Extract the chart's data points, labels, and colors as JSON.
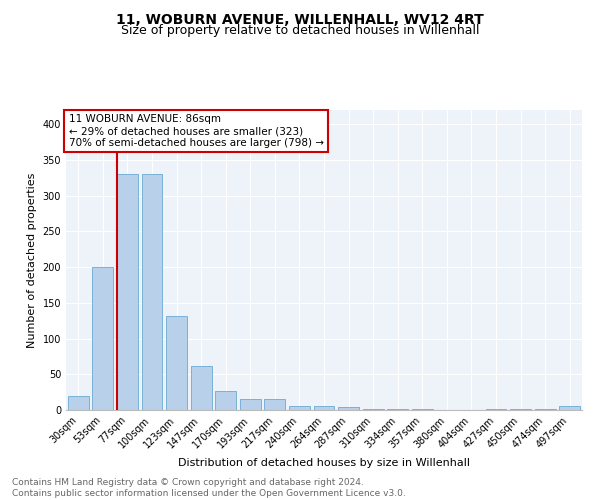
{
  "title": "11, WOBURN AVENUE, WILLENHALL, WV12 4RT",
  "subtitle": "Size of property relative to detached houses in Willenhall",
  "xlabel": "Distribution of detached houses by size in Willenhall",
  "ylabel": "Number of detached properties",
  "categories": [
    "30sqm",
    "53sqm",
    "77sqm",
    "100sqm",
    "123sqm",
    "147sqm",
    "170sqm",
    "193sqm",
    "217sqm",
    "240sqm",
    "264sqm",
    "287sqm",
    "310sqm",
    "334sqm",
    "357sqm",
    "380sqm",
    "404sqm",
    "427sqm",
    "450sqm",
    "474sqm",
    "497sqm"
  ],
  "values": [
    19,
    200,
    330,
    331,
    132,
    62,
    27,
    16,
    15,
    6,
    5,
    4,
    1,
    1,
    1,
    0,
    0,
    2,
    1,
    1,
    5
  ],
  "bar_color": "#b8d0ea",
  "bar_edge_color": "#6aaad4",
  "vline_bin_index": 2,
  "vline_color": "#cc0000",
  "annotation_text": "11 WOBURN AVENUE: 86sqm\n← 29% of detached houses are smaller (323)\n70% of semi-detached houses are larger (798) →",
  "annotation_box_color": "#ffffff",
  "annotation_box_edge": "#cc0000",
  "footnote": "Contains HM Land Registry data © Crown copyright and database right 2024.\nContains public sector information licensed under the Open Government Licence v3.0.",
  "ylim": [
    0,
    420
  ],
  "yticks": [
    0,
    50,
    100,
    150,
    200,
    250,
    300,
    350,
    400
  ],
  "background_color": "#eef2f9",
  "title_fontsize": 10,
  "subtitle_fontsize": 9,
  "ylabel_fontsize": 8,
  "xlabel_fontsize": 8,
  "tick_fontsize": 7,
  "footnote_fontsize": 6.5,
  "footnote_color": "#666666",
  "annotation_fontsize": 7.5
}
